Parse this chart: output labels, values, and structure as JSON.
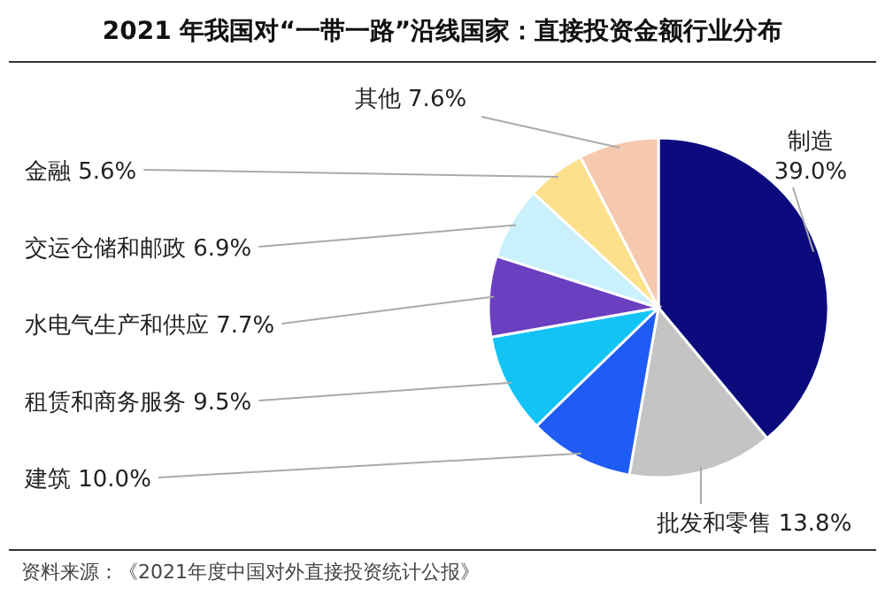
{
  "chart_data": {
    "type": "pie",
    "title": "2021 年我国对“一带一路”沿线国家：直接投资金额行业分布",
    "categories": [
      "制造",
      "批发和零售",
      "建筑",
      "租赁和商务服务",
      "水电气生产和供应",
      "交运仓储和邮政",
      "金融",
      "其他"
    ],
    "values": [
      39.0,
      13.8,
      10.0,
      9.5,
      7.7,
      6.9,
      5.6,
      7.6
    ],
    "colors": [
      "#0b0b7e",
      "#c4c4c4",
      "#1f5cf5",
      "#12c4f5",
      "#6a3fc0",
      "#c9f0fb",
      "#fde08c",
      "#f6c8ae"
    ],
    "value_labels": [
      "39.0%",
      "13.8%",
      "10.0%",
      "9.5%",
      "7.7%",
      "6.9%",
      "5.6%",
      "7.6%"
    ],
    "annotations": [
      "资料来源：《2021年度中国对外直接投资统计公报》"
    ]
  }
}
